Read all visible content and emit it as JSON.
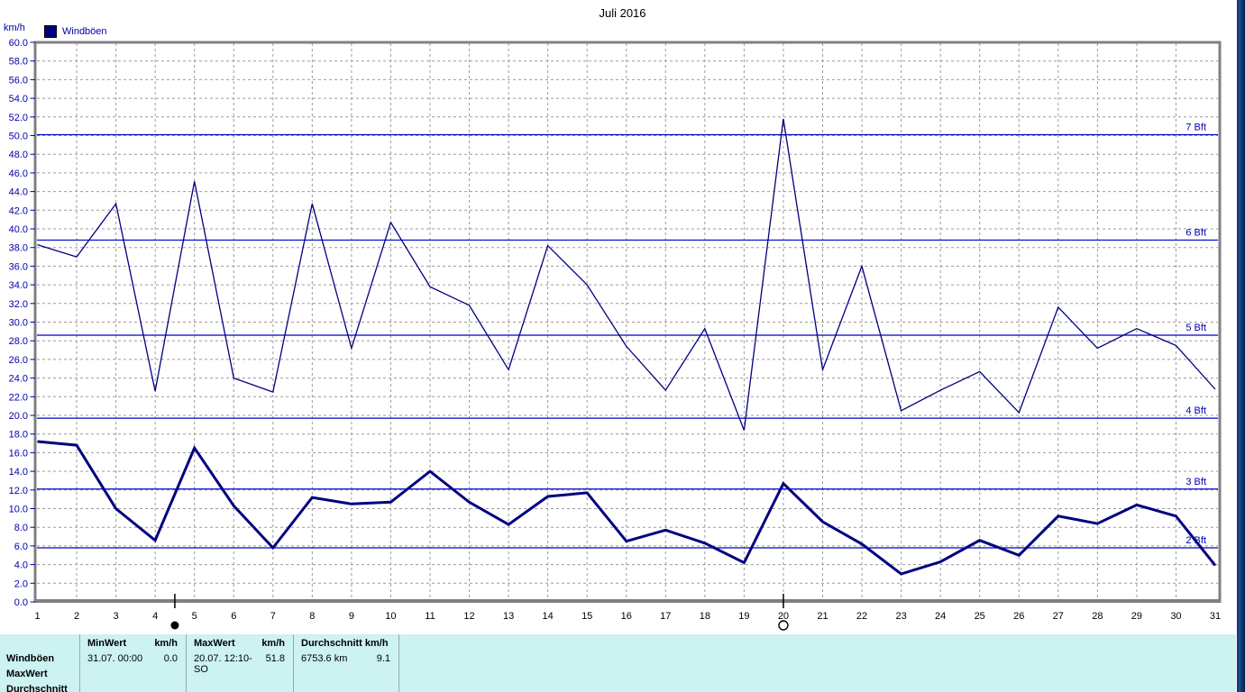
{
  "title": "Juli 2016",
  "y_axis": {
    "unit_label": "km/h",
    "min": 0.0,
    "max": 60.0,
    "step": 2.0
  },
  "legend": {
    "label": "Windböen",
    "swatch_color": "#000080"
  },
  "colors": {
    "series": "#000080",
    "bft_line": "#0000c8",
    "bft_label": "#0000b4",
    "axis_frame": "#808080",
    "grid": "#9c9c9c",
    "y_label": "#0000a8",
    "x_label": "#000000",
    "table_bg": "#ccf2f2",
    "window_edge": "#0a2c5e"
  },
  "chart_data": {
    "type": "line",
    "title": "Juli 2016",
    "xlabel": "",
    "ylabel": "km/h",
    "ylim": [
      0.0,
      60.0
    ],
    "y_tick_step": 2.0,
    "grid": "dashed",
    "categories": [
      1,
      2,
      3,
      4,
      5,
      6,
      7,
      8,
      9,
      10,
      11,
      12,
      13,
      14,
      15,
      16,
      17,
      18,
      19,
      20,
      21,
      22,
      23,
      24,
      25,
      26,
      27,
      28,
      29,
      30,
      31
    ],
    "series": [
      {
        "name": "Windböen Maximum",
        "style": "thin",
        "values": [
          38.3,
          37.0,
          42.7,
          22.6,
          45.1,
          24.0,
          22.5,
          42.7,
          27.2,
          40.7,
          33.8,
          31.8,
          24.9,
          38.2,
          34.0,
          27.4,
          22.7,
          29.3,
          18.4,
          51.8,
          24.9,
          36.0,
          20.5,
          22.7,
          24.7,
          20.3,
          31.6,
          27.2,
          29.3,
          27.5,
          22.8
        ]
      },
      {
        "name": "Windböen Durchschnitt",
        "style": "thick",
        "values": [
          17.2,
          16.8,
          10.0,
          6.6,
          16.5,
          10.3,
          5.8,
          11.2,
          10.5,
          10.7,
          14.0,
          10.7,
          8.3,
          11.3,
          11.7,
          6.5,
          7.7,
          6.3,
          4.2,
          12.7,
          8.6,
          6.2,
          3.0,
          4.3,
          6.6,
          5.0,
          9.2,
          8.4,
          10.4,
          9.2,
          3.9
        ]
      }
    ],
    "bft_lines": [
      {
        "label": "2 Bft",
        "value": 5.8
      },
      {
        "label": "3 Bft",
        "value": 12.1
      },
      {
        "label": "4 Bft",
        "value": 19.7
      },
      {
        "label": "5 Bft",
        "value": 28.6
      },
      {
        "label": "6 Bft",
        "value": 38.8
      },
      {
        "label": "7 Bft",
        "value": 50.1
      }
    ],
    "moon_markers": [
      {
        "symbol": "new-moon",
        "day": 4.5
      },
      {
        "symbol": "full-moon",
        "day": 20
      }
    ]
  },
  "table": {
    "row_labels": [
      "Windböen",
      "MaxWert",
      "Durchschnitt"
    ],
    "columns": [
      {
        "header_left": "MinWert",
        "header_right": "km/h",
        "value_left": "31.07.  00:00",
        "value_right": "0.0"
      },
      {
        "header_left": "MaxWert",
        "header_right": "km/h",
        "value_left": "20.07.  12:10-SO",
        "value_right": "51.8"
      },
      {
        "header_left": "Durchschnitt km/h",
        "header_right": "",
        "value_left": "6753.6 km",
        "value_right": "9.1"
      }
    ]
  }
}
